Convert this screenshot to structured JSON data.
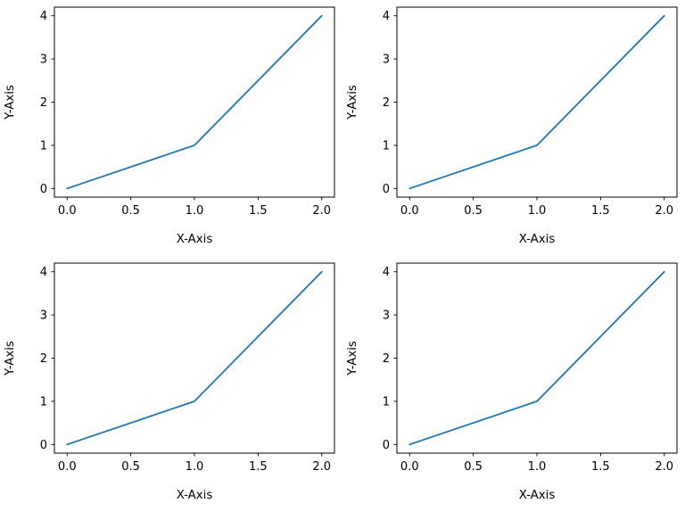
{
  "figure": {
    "background_color": "#ffffff",
    "line_color": "#1f77b4",
    "spine_color": "#000000",
    "tick_color": "#000000",
    "text_color": "#000000"
  },
  "chart_data": [
    {
      "type": "line",
      "name": "subplot-top-left",
      "title": "",
      "xlabel": "X-Axis",
      "ylabel": "Y-Axis",
      "x": [
        0,
        1,
        2
      ],
      "y": [
        0,
        1,
        4
      ],
      "xtick_values": [
        0.0,
        0.5,
        1.0,
        1.5,
        2.0
      ],
      "xtick_labels": [
        "0.0",
        "0.5",
        "1.0",
        "1.5",
        "2.0"
      ],
      "ytick_values": [
        0,
        1,
        2,
        3,
        4
      ],
      "ytick_labels": [
        "0",
        "1",
        "2",
        "3",
        "4"
      ],
      "xlim": [
        -0.1,
        2.1
      ],
      "ylim": [
        -0.2,
        4.2
      ],
      "grid": false,
      "legend": null
    },
    {
      "type": "line",
      "name": "subplot-top-right",
      "title": "",
      "xlabel": "X-Axis",
      "ylabel": "Y-Axis",
      "x": [
        0,
        1,
        2
      ],
      "y": [
        0,
        1,
        4
      ],
      "xtick_values": [
        0.0,
        0.5,
        1.0,
        1.5,
        2.0
      ],
      "xtick_labels": [
        "0.0",
        "0.5",
        "1.0",
        "1.5",
        "2.0"
      ],
      "ytick_values": [
        0,
        1,
        2,
        3,
        4
      ],
      "ytick_labels": [
        "0",
        "1",
        "2",
        "3",
        "4"
      ],
      "xlim": [
        -0.1,
        2.1
      ],
      "ylim": [
        -0.2,
        4.2
      ],
      "grid": false,
      "legend": null
    },
    {
      "type": "line",
      "name": "subplot-bottom-left",
      "title": "",
      "xlabel": "X-Axis",
      "ylabel": "Y-Axis",
      "x": [
        0,
        1,
        2
      ],
      "y": [
        0,
        1,
        4
      ],
      "xtick_values": [
        0.0,
        0.5,
        1.0,
        1.5,
        2.0
      ],
      "xtick_labels": [
        "0.0",
        "0.5",
        "1.0",
        "1.5",
        "2.0"
      ],
      "ytick_values": [
        0,
        1,
        2,
        3,
        4
      ],
      "ytick_labels": [
        "0",
        "1",
        "2",
        "3",
        "4"
      ],
      "xlim": [
        -0.1,
        2.1
      ],
      "ylim": [
        -0.2,
        4.2
      ],
      "grid": false,
      "legend": null
    },
    {
      "type": "line",
      "name": "subplot-bottom-right",
      "title": "",
      "xlabel": "X-Axis",
      "ylabel": "Y-Axis",
      "x": [
        0,
        1,
        2
      ],
      "y": [
        0,
        1,
        4
      ],
      "xtick_values": [
        0.0,
        0.5,
        1.0,
        1.5,
        2.0
      ],
      "xtick_labels": [
        "0.0",
        "0.5",
        "1.0",
        "1.5",
        "2.0"
      ],
      "ytick_values": [
        0,
        1,
        2,
        3,
        4
      ],
      "ytick_labels": [
        "0",
        "1",
        "2",
        "3",
        "4"
      ],
      "xlim": [
        -0.1,
        2.1
      ],
      "ylim": [
        -0.2,
        4.2
      ],
      "grid": false,
      "legend": null
    }
  ]
}
